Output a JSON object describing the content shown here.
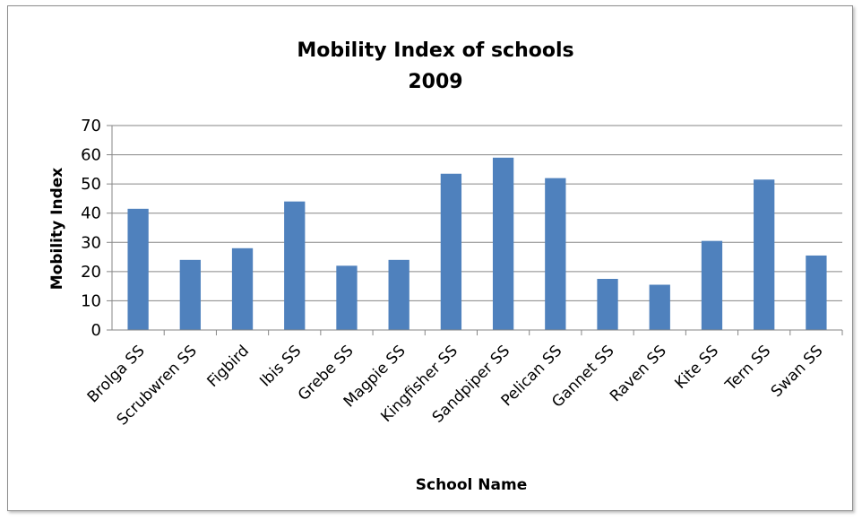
{
  "chart_data": {
    "type": "bar",
    "title": [
      "Mobility Index of schools",
      "2009"
    ],
    "xlabel": "School Name",
    "ylabel": "Mobility Index",
    "ylim": [
      0,
      70
    ],
    "yticks": [
      0,
      10,
      20,
      30,
      40,
      50,
      60,
      70
    ],
    "grid": true,
    "legend": "none",
    "bar_color": "#4f81bd",
    "categories": [
      "Brolga SS",
      "Scrubwren SS",
      "Figbird",
      "Ibis SS",
      "Grebe SS",
      "Magpie SS",
      "Kingfisher SS",
      "Sandpiper SS",
      "Pelican SS",
      "Gannet SS",
      "Raven SS",
      "Kite SS",
      "Tern SS",
      "Swan SS"
    ],
    "values": [
      41.5,
      24,
      28,
      44,
      22,
      24,
      53.5,
      59,
      52,
      17.5,
      15.5,
      30.5,
      51.5,
      25.5
    ]
  }
}
